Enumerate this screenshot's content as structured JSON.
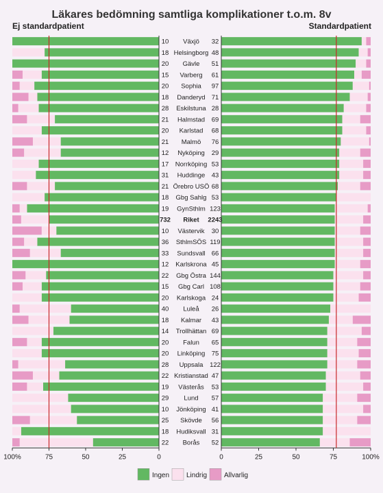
{
  "chart_data": {
    "type": "bar",
    "title": "Läkares bedömning samtliga komplikationer t.o.m. 8v",
    "left_subtitle": "Ej standardpatient",
    "right_subtitle": "Standardpatient",
    "series_names": [
      "Ingen",
      "Lindrig",
      "Allvarlig"
    ],
    "colors": {
      "ingen": "#62b862",
      "lindrig": "#fbe1ee",
      "allvarlig": "#e79bc6",
      "reference": "#c62828"
    },
    "left_axis": {
      "ticks": [
        "100%",
        "75",
        "50",
        "25",
        "0"
      ],
      "range": [
        100,
        0
      ],
      "reference": 75
    },
    "right_axis": {
      "ticks": [
        "0",
        "25",
        "50",
        "75",
        "100%"
      ],
      "range": [
        0,
        100
      ],
      "reference": 77
    },
    "highlight": "Riket",
    "rows": [
      {
        "name": "Växjö",
        "n_left": "10",
        "n_right": "32",
        "left": [
          100,
          0,
          0
        ],
        "right": [
          94,
          3,
          3
        ]
      },
      {
        "name": "Helsingborg",
        "n_left": "18",
        "n_right": "48",
        "left": [
          78,
          22,
          0
        ],
        "right": [
          92,
          6,
          2
        ]
      },
      {
        "name": "Gävle",
        "n_left": "20",
        "n_right": "51",
        "left": [
          100,
          0,
          0
        ],
        "right": [
          90,
          7,
          3
        ]
      },
      {
        "name": "Varberg",
        "n_left": "15",
        "n_right": "61",
        "left": [
          80,
          13,
          7
        ],
        "right": [
          89,
          5,
          6
        ]
      },
      {
        "name": "Sophia",
        "n_left": "20",
        "n_right": "97",
        "left": [
          85,
          10,
          5
        ],
        "right": [
          88,
          11,
          1
        ]
      },
      {
        "name": "Danderyd",
        "n_left": "18",
        "n_right": "71",
        "left": [
          83,
          6,
          11
        ],
        "right": [
          86,
          12,
          2
        ]
      },
      {
        "name": "Eskilstuna",
        "n_left": "28",
        "n_right": "28",
        "left": [
          82,
          14,
          4
        ],
        "right": [
          82,
          15,
          3
        ]
      },
      {
        "name": "Halmstad",
        "n_left": "21",
        "n_right": "69",
        "left": [
          71,
          19,
          10
        ],
        "right": [
          81,
          12,
          7
        ]
      },
      {
        "name": "Karlstad",
        "n_left": "20",
        "n_right": "68",
        "left": [
          80,
          20,
          0
        ],
        "right": [
          81,
          16,
          3
        ]
      },
      {
        "name": "Malmö",
        "n_left": "21",
        "n_right": "76",
        "left": [
          67,
          19,
          14
        ],
        "right": [
          80,
          19,
          1
        ]
      },
      {
        "name": "Nyköping",
        "n_left": "12",
        "n_right": "29",
        "left": [
          67,
          25,
          8
        ],
        "right": [
          79,
          14,
          7
        ]
      },
      {
        "name": "Norrköping",
        "n_left": "17",
        "n_right": "53",
        "left": [
          82,
          18,
          0
        ],
        "right": [
          79,
          16,
          5
        ]
      },
      {
        "name": "Huddinge",
        "n_left": "31",
        "n_right": "43",
        "left": [
          84,
          16,
          0
        ],
        "right": [
          79,
          16,
          5
        ]
      },
      {
        "name": "Örebro USÖ",
        "n_left": "21",
        "n_right": "68",
        "left": [
          71,
          19,
          10
        ],
        "right": [
          78,
          15,
          7
        ]
      },
      {
        "name": "Gbg Sahlg",
        "n_left": "18",
        "n_right": "53",
        "left": [
          78,
          22,
          0
        ],
        "right": [
          77,
          23,
          0
        ]
      },
      {
        "name": "GynSthlm",
        "n_left": "19",
        "n_right": "123",
        "left": [
          90,
          5,
          5
        ],
        "right": [
          76,
          22,
          2
        ]
      },
      {
        "name": "Riket",
        "n_left": "732",
        "n_right": "2243",
        "left": [
          75,
          19,
          6
        ],
        "right": [
          76,
          19,
          5
        ]
      },
      {
        "name": "Västervik",
        "n_left": "10",
        "n_right": "30",
        "left": [
          70,
          10,
          20
        ],
        "right": [
          76,
          17,
          7
        ]
      },
      {
        "name": "SthlmSÖS",
        "n_left": "36",
        "n_right": "119",
        "left": [
          83,
          9,
          8
        ],
        "right": [
          76,
          19,
          5
        ]
      },
      {
        "name": "Sundsvall",
        "n_left": "33",
        "n_right": "66",
        "left": [
          67,
          21,
          12
        ],
        "right": [
          76,
          19,
          5
        ]
      },
      {
        "name": "Karlskrona",
        "n_left": "12",
        "n_right": "45",
        "left": [
          100,
          0,
          0
        ],
        "right": [
          76,
          17,
          7
        ]
      },
      {
        "name": "Gbg Östra",
        "n_left": "22",
        "n_right": "144",
        "left": [
          77,
          14,
          9
        ],
        "right": [
          75,
          20,
          5
        ]
      },
      {
        "name": "Gbg Carl",
        "n_left": "15",
        "n_right": "108",
        "left": [
          80,
          13,
          7
        ],
        "right": [
          75,
          18,
          7
        ]
      },
      {
        "name": "Karlskoga",
        "n_left": "20",
        "n_right": "24",
        "left": [
          80,
          20,
          0
        ],
        "right": [
          75,
          17,
          8
        ]
      },
      {
        "name": "Luleå",
        "n_left": "40",
        "n_right": "26",
        "left": [
          60,
          35,
          5
        ],
        "right": [
          73,
          27,
          0
        ]
      },
      {
        "name": "Kalmar",
        "n_left": "18",
        "n_right": "43",
        "left": [
          61,
          28,
          11
        ],
        "right": [
          72,
          16,
          12
        ]
      },
      {
        "name": "Trollhättan",
        "n_left": "14",
        "n_right": "69",
        "left": [
          72,
          28,
          0
        ],
        "right": [
          71,
          23,
          6
        ]
      },
      {
        "name": "Falun",
        "n_left": "20",
        "n_right": "65",
        "left": [
          80,
          10,
          10
        ],
        "right": [
          71,
          20,
          9
        ]
      },
      {
        "name": "Linköping",
        "n_left": "20",
        "n_right": "75",
        "left": [
          80,
          20,
          0
        ],
        "right": [
          71,
          21,
          8
        ]
      },
      {
        "name": "Uppsala",
        "n_left": "28",
        "n_right": "122",
        "left": [
          64,
          32,
          4
        ],
        "right": [
          71,
          20,
          9
        ]
      },
      {
        "name": "Kristianstad",
        "n_left": "22",
        "n_right": "47",
        "left": [
          68,
          18,
          14
        ],
        "right": [
          70,
          23,
          7
        ]
      },
      {
        "name": "Västerås",
        "n_left": "19",
        "n_right": "53",
        "left": [
          79,
          11,
          10
        ],
        "right": [
          70,
          25,
          5
        ]
      },
      {
        "name": "Lund",
        "n_left": "29",
        "n_right": "57",
        "left": [
          62,
          38,
          0
        ],
        "right": [
          68,
          23,
          9
        ]
      },
      {
        "name": "Jönköping",
        "n_left": "10",
        "n_right": "41",
        "left": [
          60,
          40,
          0
        ],
        "right": [
          68,
          27,
          5
        ]
      },
      {
        "name": "Skövde",
        "n_left": "25",
        "n_right": "56",
        "left": [
          56,
          32,
          12
        ],
        "right": [
          68,
          23,
          9
        ]
      },
      {
        "name": "Hudiksvall",
        "n_left": "18",
        "n_right": "31",
        "left": [
          94,
          6,
          0
        ],
        "right": [
          68,
          32,
          0
        ]
      },
      {
        "name": "Borås",
        "n_left": "22",
        "n_right": "52",
        "left": [
          45,
          50,
          5
        ],
        "right": [
          66,
          20,
          14
        ]
      }
    ]
  }
}
